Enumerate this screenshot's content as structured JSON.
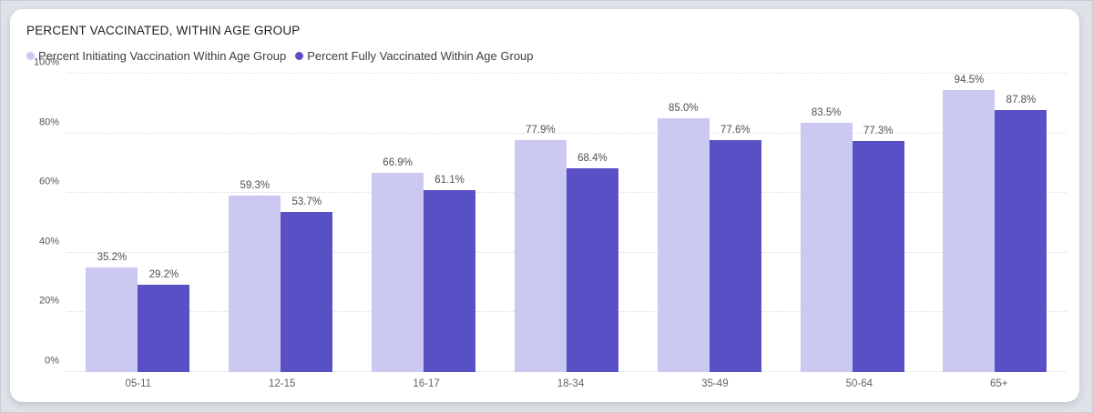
{
  "page": {
    "background": "#dfe2e8",
    "card_background": "#ffffff"
  },
  "header": {
    "title": "PERCENT VACCINATED, WITHIN AGE GROUP"
  },
  "chart_data": {
    "type": "bar",
    "title": "PERCENT VACCINATED, WITHIN AGE GROUP",
    "categories": [
      "05-11",
      "12-15",
      "16-17",
      "18-34",
      "35-49",
      "50-64",
      "65+"
    ],
    "series": [
      {
        "name": "Percent Initiating Vaccination Within Age Group",
        "color": "#cbc9f2",
        "values": [
          35.2,
          59.3,
          66.9,
          77.9,
          85.0,
          83.5,
          94.5
        ]
      },
      {
        "name": "Percent Fully Vaccinated Within Age Group",
        "color": "#5a50c6",
        "values": [
          29.2,
          53.7,
          61.1,
          68.4,
          77.6,
          77.3,
          87.8
        ]
      }
    ],
    "value_label_suffix": "%",
    "value_label_decimals": 1,
    "xlabel": "",
    "ylabel": "",
    "ylim": [
      0,
      100
    ],
    "yticks": [
      "0%",
      "20%",
      "40%",
      "60%",
      "80%",
      "100%"
    ],
    "grid": "horizontal-dotted",
    "gridline_color": "#dcdde8",
    "legend_position": "top-left",
    "data_labels": "above-bars"
  }
}
